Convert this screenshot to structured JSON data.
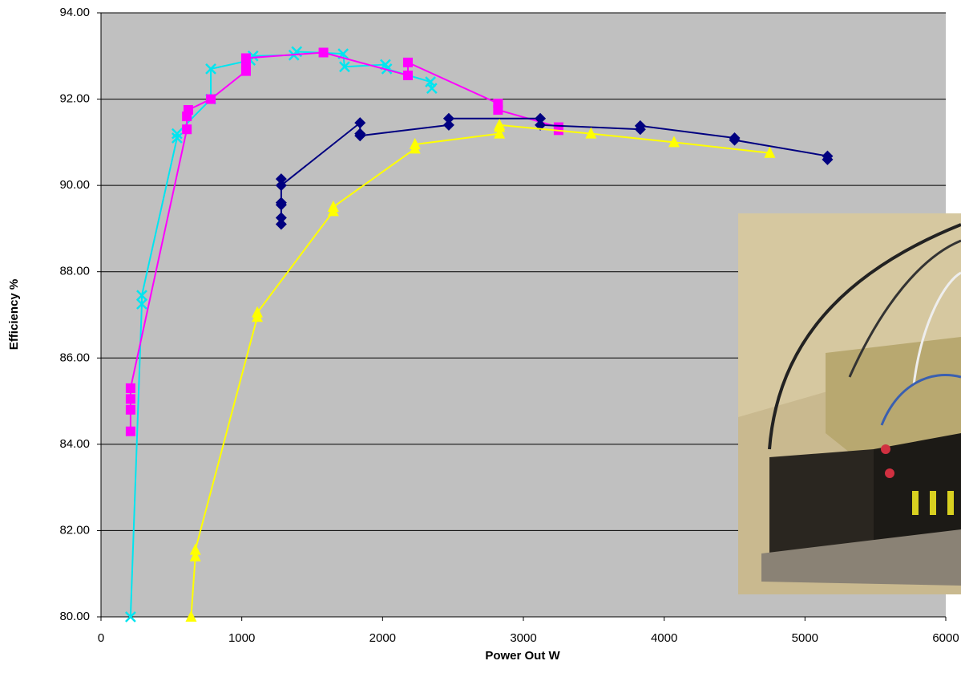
{
  "chart_data": {
    "type": "scatter-line",
    "x_label": "Power Out W",
    "y_label": "Efficiency %",
    "xlim": [
      0,
      6000
    ],
    "xticks": [
      0,
      1000,
      2000,
      3000,
      4000,
      5000,
      6000
    ],
    "ylim": [
      80,
      94
    ],
    "yticks": [
      {
        "value": 80,
        "label": "80.00"
      },
      {
        "value": 82,
        "label": "82.00"
      },
      {
        "value": 84,
        "label": "84.00"
      },
      {
        "value": 86,
        "label": "86.00"
      },
      {
        "value": 88,
        "label": "88.00"
      },
      {
        "value": 90,
        "label": "90.00"
      },
      {
        "value": 92,
        "label": "92.00"
      },
      {
        "value": 94,
        "label": "94.00"
      }
    ],
    "grid": true,
    "plot_background": "#c0c0c0",
    "series": [
      {
        "color": "#00e5f0",
        "marker": "x",
        "x": [
          210,
          290,
          290,
          540,
          540,
          780,
          780,
          1060,
          1080,
          1370,
          1390,
          1720,
          1730,
          2020,
          2030,
          2340,
          2350
        ],
        "values": [
          80.0,
          87.25,
          87.45,
          91.1,
          91.2,
          92.0,
          92.7,
          92.9,
          93.0,
          93.02,
          93.1,
          93.05,
          92.75,
          92.8,
          92.7,
          92.4,
          92.25
        ]
      },
      {
        "color": "#ff00ff",
        "marker": "square",
        "x": [
          210,
          210,
          210,
          210,
          610,
          610,
          620,
          780,
          1030,
          1030,
          1030,
          1580,
          2180,
          2180,
          2820,
          2820,
          3250,
          3250
        ],
        "values": [
          84.3,
          84.8,
          85.05,
          85.3,
          91.3,
          91.6,
          91.75,
          92.0,
          92.65,
          92.8,
          92.95,
          93.08,
          92.55,
          92.85,
          91.9,
          91.75,
          91.35,
          91.28
        ]
      },
      {
        "color": "#000080",
        "marker": "diamond",
        "x": [
          1280,
          1280,
          1280,
          1280,
          1280,
          1280,
          1840,
          1840,
          1840,
          2470,
          2470,
          3120,
          3120,
          3830,
          3830,
          4500,
          4500,
          5160,
          5160
        ],
        "values": [
          89.1,
          89.25,
          89.55,
          89.6,
          90.15,
          90.0,
          91.45,
          91.2,
          91.15,
          91.4,
          91.55,
          91.55,
          91.4,
          91.3,
          91.38,
          91.1,
          91.05,
          90.68,
          90.6
        ]
      },
      {
        "color": "#ffff00",
        "marker": "triangle",
        "x": [
          640,
          670,
          670,
          1110,
          1110,
          1650,
          1650,
          2230,
          2230,
          2830,
          2830,
          2830,
          3480,
          4070,
          4750
        ],
        "values": [
          80.0,
          81.4,
          81.55,
          86.95,
          87.05,
          89.4,
          89.5,
          90.85,
          90.95,
          91.2,
          91.35,
          91.4,
          91.2,
          91.0,
          90.75
        ]
      }
    ]
  }
}
